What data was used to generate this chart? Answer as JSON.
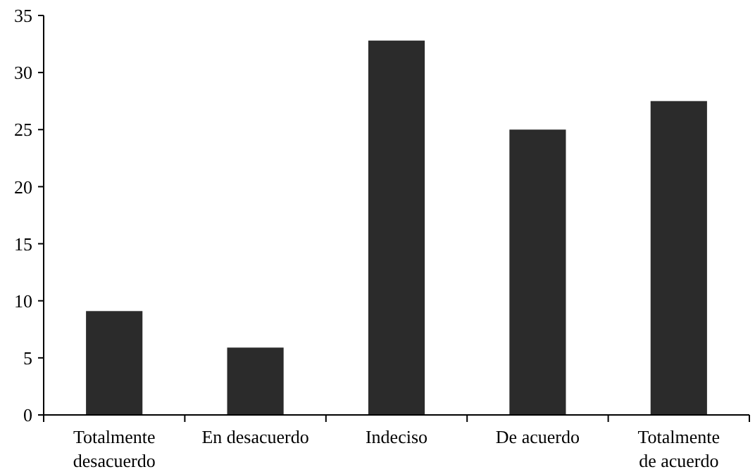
{
  "chart_data": {
    "type": "bar",
    "categories": [
      "Totalmente desacuerdo",
      "En desacuerdo",
      "Indeciso",
      "De acuerdo",
      "Totalmente de acuerdo"
    ],
    "values": [
      9.1,
      5.9,
      32.8,
      25.0,
      27.5
    ],
    "color": "#2b2b2b",
    "ylim": [
      0,
      35
    ],
    "yticks": [
      0,
      5,
      10,
      15,
      20,
      25,
      30,
      35
    ]
  }
}
